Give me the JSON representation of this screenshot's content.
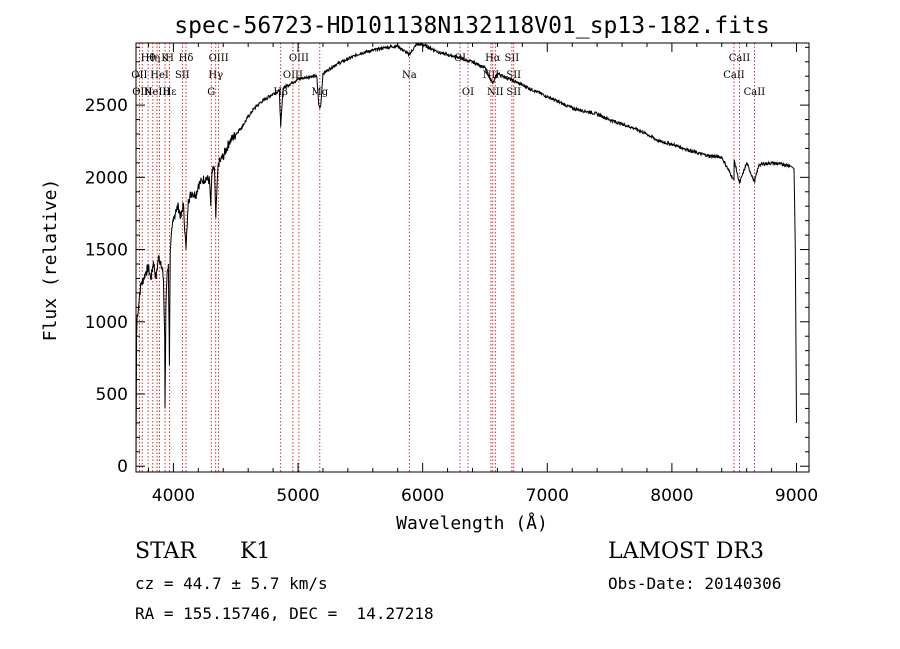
{
  "chart_data": {
    "type": "line",
    "title": "spec-56723-HD101138N132118V01_sp13-182.fits",
    "xlabel": "Wavelength (Å)",
    "ylabel": "Flux (relative)",
    "xlim": [
      3700,
      9100
    ],
    "ylim": [
      -40,
      2930
    ],
    "xticks": [
      4000,
      5000,
      6000,
      7000,
      8000,
      9000
    ],
    "yticks": [
      0,
      500,
      1000,
      1500,
      2000,
      2500
    ],
    "grid": false,
    "series": [
      {
        "name": "flux",
        "x": [
          3700,
          3705,
          3710,
          3720,
          3730,
          3740,
          3760,
          3780,
          3800,
          3820,
          3840,
          3860,
          3880,
          3900,
          3920,
          3930,
          3933,
          3940,
          3950,
          3960,
          3968,
          3975,
          3990,
          4000,
          4020,
          4040,
          4060,
          4080,
          4101,
          4120,
          4150,
          4180,
          4200,
          4230,
          4260,
          4290,
          4300,
          4310,
          4320,
          4330,
          4340,
          4360,
          4380,
          4400,
          4450,
          4500,
          4550,
          4600,
          4650,
          4700,
          4750,
          4800,
          4850,
          4861,
          4880,
          4920,
          4960,
          5000,
          5050,
          5100,
          5150,
          5167,
          5175,
          5183,
          5200,
          5300,
          5400,
          5500,
          5600,
          5700,
          5800,
          5890,
          5900,
          5950,
          6000,
          6050,
          6100,
          6150,
          6200,
          6250,
          6300,
          6350,
          6400,
          6450,
          6500,
          6563,
          6600,
          6650,
          6700,
          6750,
          6800,
          6900,
          7000,
          7100,
          7200,
          7300,
          7400,
          7500,
          7600,
          7700,
          7800,
          7900,
          8000,
          8100,
          8200,
          8300,
          8400,
          8498,
          8500,
          8542,
          8600,
          8662,
          8700,
          8800,
          8900,
          8950,
          8980,
          8990,
          9000
        ],
        "y": [
          0,
          900,
          1050,
          1100,
          1200,
          1260,
          1300,
          1350,
          1380,
          1300,
          1420,
          1300,
          1450,
          1420,
          1300,
          900,
          400,
          1100,
          1350,
          1400,
          700,
          1500,
          1650,
          1700,
          1780,
          1800,
          1720,
          1820,
          1500,
          1850,
          1900,
          1880,
          1950,
          1980,
          2000,
          1980,
          1800,
          2040,
          2050,
          2070,
          1720,
          2100,
          2120,
          2150,
          2250,
          2300,
          2350,
          2420,
          2480,
          2520,
          2550,
          2580,
          2600,
          2350,
          2620,
          2640,
          2660,
          2680,
          2690,
          2700,
          2700,
          2500,
          2480,
          2500,
          2720,
          2780,
          2820,
          2860,
          2880,
          2900,
          2910,
          2850,
          2860,
          2920,
          2920,
          2900,
          2880,
          2860,
          2850,
          2840,
          2830,
          2810,
          2800,
          2780,
          2760,
          2650,
          2720,
          2700,
          2680,
          2660,
          2640,
          2600,
          2560,
          2520,
          2480,
          2460,
          2440,
          2400,
          2370,
          2340,
          2300,
          2250,
          2230,
          2200,
          2170,
          2150,
          2140,
          1980,
          2120,
          1960,
          2100,
          1970,
          2090,
          2100,
          2090,
          2080,
          2060,
          1500,
          300
        ]
      }
    ],
    "lines": [
      {
        "x": 3727,
        "labels": [
          "",
          "OII",
          ""
        ]
      },
      {
        "x": 3750,
        "labels": [
          "",
          "",
          "OIII"
        ]
      },
      {
        "x": 3797,
        "labels": [
          "Hθ",
          "",
          ""
        ]
      },
      {
        "x": 3835,
        "labels": [
          "Hη",
          "",
          ""
        ]
      },
      {
        "x": 3869,
        "labels": [
          "",
          "",
          "NeIII"
        ]
      },
      {
        "x": 3889,
        "labels": [
          "",
          "HeI",
          ""
        ]
      },
      {
        "x": 3933,
        "labels": [
          "K",
          "",
          ""
        ]
      },
      {
        "x": 3970,
        "labels": [
          "H",
          "",
          "Hε"
        ]
      },
      {
        "x": 4072,
        "labels": [
          "",
          "SII",
          ""
        ]
      },
      {
        "x": 4101,
        "labels": [
          "Hδ",
          "",
          ""
        ]
      },
      {
        "x": 4304,
        "labels": [
          "",
          "",
          "G"
        ]
      },
      {
        "x": 4340,
        "labels": [
          "",
          "Hγ",
          ""
        ]
      },
      {
        "x": 4363,
        "labels": [
          "OIII",
          "",
          ""
        ]
      },
      {
        "x": 4861,
        "labels": [
          "",
          "",
          "Hβ"
        ]
      },
      {
        "x": 4959,
        "labels": [
          "",
          "OIII",
          ""
        ]
      },
      {
        "x": 5007,
        "labels": [
          "OIII",
          "",
          ""
        ]
      },
      {
        "x": 5175,
        "labels": [
          "",
          "",
          "Mg"
        ]
      },
      {
        "x": 5893,
        "labels": [
          "",
          "Na",
          ""
        ]
      },
      {
        "x": 6300,
        "labels": [
          "OI",
          "",
          ""
        ]
      },
      {
        "x": 6364,
        "labels": [
          "",
          "",
          "OI"
        ]
      },
      {
        "x": 6548,
        "labels": [
          "",
          "NII",
          ""
        ]
      },
      {
        "x": 6563,
        "labels": [
          "Hα",
          "",
          ""
        ]
      },
      {
        "x": 6583,
        "labels": [
          "",
          "",
          "NII"
        ]
      },
      {
        "x": 6716,
        "labels": [
          "SII",
          "",
          ""
        ]
      },
      {
        "x": 6731,
        "labels": [
          "",
          "SII",
          "SII"
        ]
      },
      {
        "x": 8498,
        "labels": [
          "",
          "CaII",
          ""
        ]
      },
      {
        "x": 8542,
        "labels": [
          "CaII",
          "",
          ""
        ]
      },
      {
        "x": 8662,
        "labels": [
          "",
          "",
          "CaII"
        ]
      }
    ]
  },
  "info": {
    "class_label": "STAR",
    "subclass_label": "K1",
    "survey_label": "LAMOST DR3",
    "cz_text": "cz = 44.7 ± 5.7 km/s",
    "obs_date_text": "Obs-Date: 20140306",
    "coords_text": "RA = 155.15746, DEC =  14.27218"
  }
}
